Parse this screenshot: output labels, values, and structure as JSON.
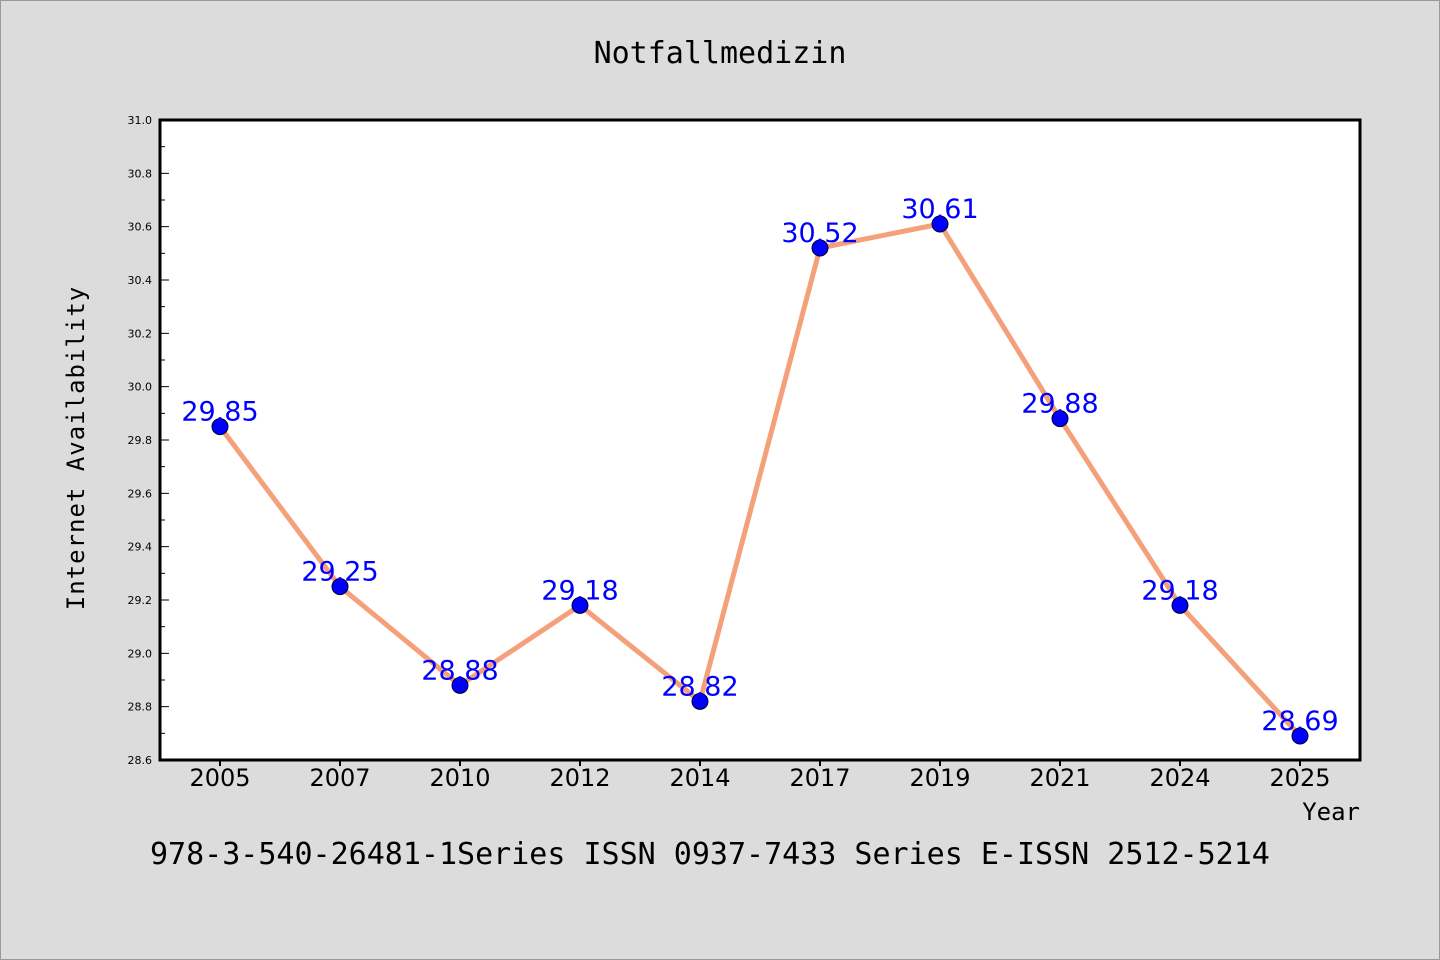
{
  "chart_data": {
    "type": "line",
    "title": "Notfallmedizin",
    "xlabel": "Year",
    "ylabel": "Internet Availability",
    "categories": [
      "2005",
      "2007",
      "2010",
      "2012",
      "2014",
      "2017",
      "2019",
      "2021",
      "2024",
      "2025"
    ],
    "series": [
      {
        "values": [
          29.85,
          29.25,
          28.88,
          29.18,
          28.82,
          30.52,
          30.61,
          29.88,
          29.18,
          28.69
        ],
        "data_labels": [
          "29.85",
          "29.25",
          "28.88",
          "29.18",
          "28.82",
          "30.52",
          "30.61",
          "29.88",
          "29.18",
          "28.69"
        ],
        "line_color": "#f4a07a",
        "marker_color": "#0000ff"
      }
    ],
    "ylim": [
      28.6,
      31.0
    ],
    "yticks": [
      "28.6",
      "28.8",
      "29.0",
      "29.2",
      "29.4",
      "29.6",
      "29.8",
      "30.0",
      "30.2",
      "30.4",
      "30.6",
      "30.8",
      "31.0"
    ],
    "grid": false,
    "legend": "none"
  },
  "footer": "978-3-540-26481-1Series ISSN 0937-7433 Series E-ISSN 2512-5214",
  "colors": {
    "background": "#dcdcdc",
    "plot_area": "#ffffff",
    "line": "#f4a07a",
    "markers": "#0000ff",
    "data_labels": "#0000ff"
  }
}
